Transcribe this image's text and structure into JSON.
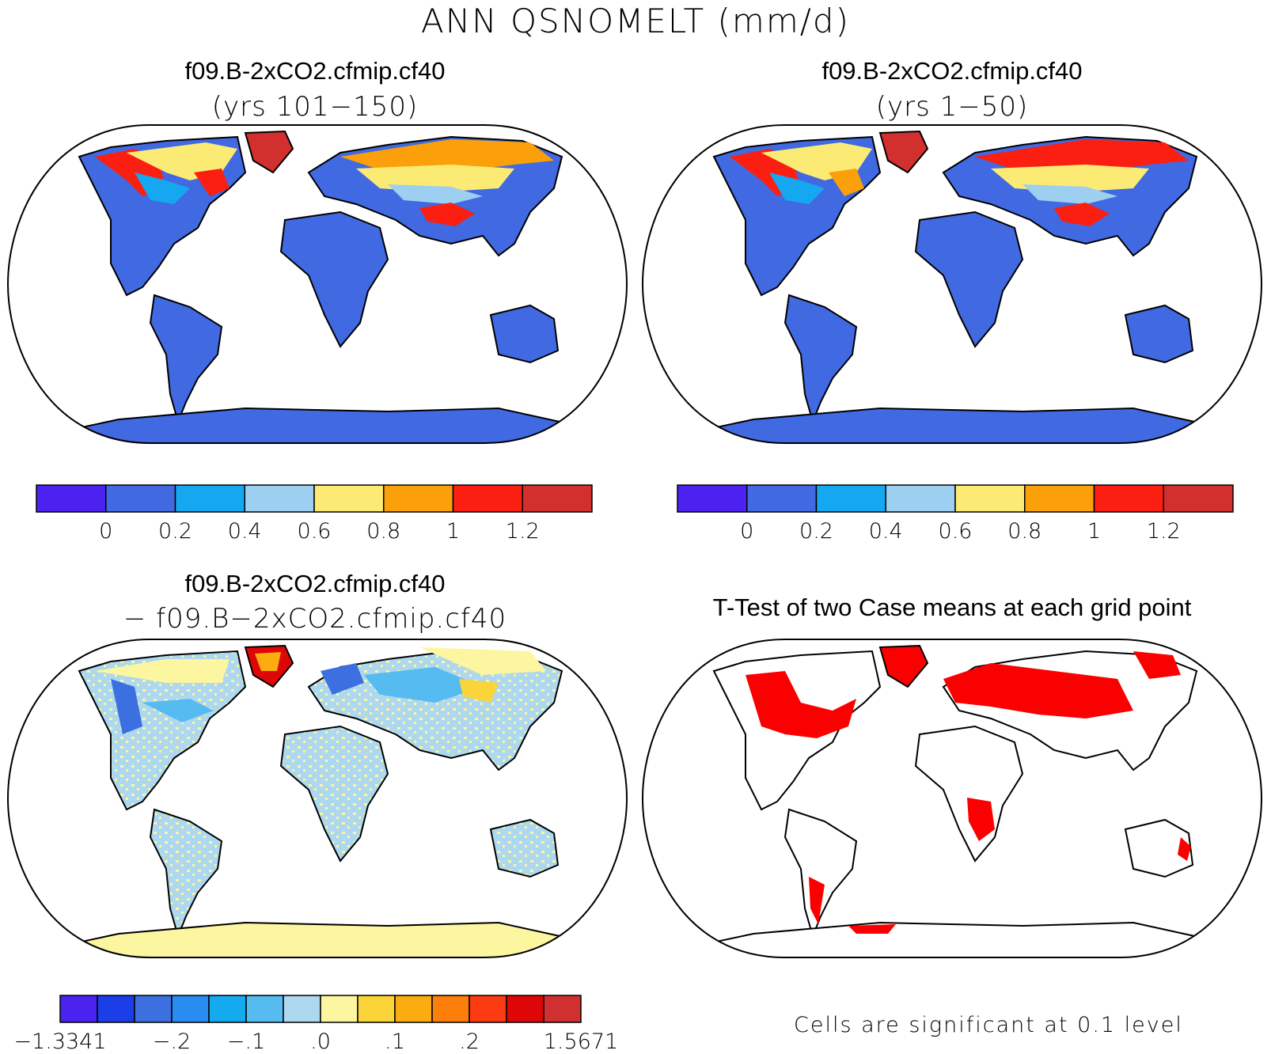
{
  "title": "ANN QSNOMELT (mm/d)",
  "panels": [
    {
      "id": "case1",
      "title": "f09.B-2xCO2.cfmip.cf40",
      "subtitle": "(yrs 101−150)",
      "colorbar": {
        "colors": [
          "#4b22f0",
          "#4169e1",
          "#15a7f0",
          "#9dcff0",
          "#fbea74",
          "#fb9f0a",
          "#fb1f12",
          "#d22f2f"
        ],
        "ticks": [
          "0",
          "0.2",
          "0.4",
          "0.6",
          "0.8",
          "1",
          "1.2"
        ]
      }
    },
    {
      "id": "case2",
      "title": "f09.B-2xCO2.cfmip.cf40",
      "subtitle": "(yrs 1−50)",
      "colorbar": {
        "colors": [
          "#4b22f0",
          "#4169e1",
          "#15a7f0",
          "#9dcff0",
          "#fbea74",
          "#fb9f0a",
          "#fb1f12",
          "#d22f2f"
        ],
        "ticks": [
          "0",
          "0.2",
          "0.4",
          "0.6",
          "0.8",
          "1",
          "1.2"
        ]
      }
    },
    {
      "id": "diff",
      "title": "f09.B-2xCO2.cfmip.cf40",
      "subtitle": "− f09.B−2xCO2.cfmip.cf40",
      "colorbar": {
        "colors": [
          "#4b22f0",
          "#1c3ee8",
          "#3c6fe0",
          "#2a8cf0",
          "#14aaf0",
          "#55bbf0",
          "#add8f0",
          "#fcf6a0",
          "#fbd43a",
          "#fbac10",
          "#fb7f0a",
          "#fb3b12",
          "#de0606",
          "#d03030"
        ],
        "ticks": [
          "−1.3341",
          "−.2",
          "−.1",
          ".0",
          ".1",
          ".2",
          "1.5671"
        ]
      }
    },
    {
      "id": "ttest",
      "title": "T-Test of two Case means at each grid point",
      "note": "Cells are significant at 0.1 level"
    }
  ],
  "legend_colors": {
    "land_low": "#4169e1",
    "diff_background": "#add8f0",
    "significant": "#fb0000"
  }
}
